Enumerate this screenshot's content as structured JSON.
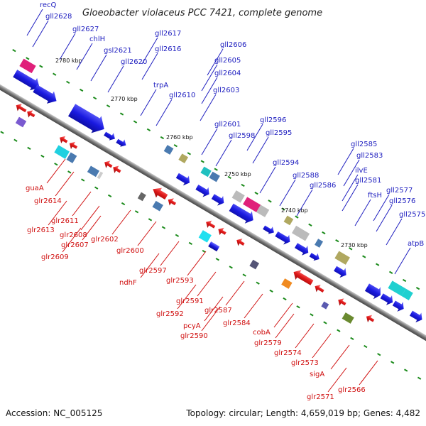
{
  "title": "Gloeobacter violaceus PCC 7421, complete genome",
  "footer": {
    "accession": "Accession: NC_005125",
    "topology": "Topology: circular; Length: 4,659,019 bp; Genes: 4,482"
  },
  "colors": {
    "forward": "#1a1ae0",
    "reverse": "#e01818",
    "backbone": "#888888",
    "tick": "#1a8a1a"
  },
  "kbp_ticks": [
    {
      "label": "2780 kbp"
    },
    {
      "label": "2770 kbp"
    },
    {
      "label": "2760 kbp"
    },
    {
      "label": "2750 kbp"
    },
    {
      "label": "2740 kbp"
    },
    {
      "label": "2730 kbp"
    }
  ],
  "forward_labels": [
    {
      "text": "recQ"
    },
    {
      "text": "gll2628"
    },
    {
      "text": "gll2627"
    },
    {
      "text": "chlH"
    },
    {
      "text": "gsl2621"
    },
    {
      "text": "gll2617"
    },
    {
      "text": "gll2616"
    },
    {
      "text": "gll2620"
    },
    {
      "text": "gll2610"
    },
    {
      "text": "trpA"
    },
    {
      "text": "gll2606"
    },
    {
      "text": "gll2605"
    },
    {
      "text": "gll2604"
    },
    {
      "text": "gll2603"
    },
    {
      "text": "gll2601"
    },
    {
      "text": "gll2596"
    },
    {
      "text": "gll2598"
    },
    {
      "text": "gll2595"
    },
    {
      "text": "gll2594"
    },
    {
      "text": "gll2585"
    },
    {
      "text": "gll2583"
    },
    {
      "text": "gll2588"
    },
    {
      "text": "ilvE"
    },
    {
      "text": "gll2586"
    },
    {
      "text": "gll2581"
    },
    {
      "text": "ftsH"
    },
    {
      "text": "gll2577"
    },
    {
      "text": "gll2576"
    },
    {
      "text": "gll2575"
    },
    {
      "text": "atpB"
    }
  ],
  "reverse_labels": [
    {
      "text": "guaA"
    },
    {
      "text": "glr2614"
    },
    {
      "text": "glr2611"
    },
    {
      "text": "glr2613"
    },
    {
      "text": "glr2608"
    },
    {
      "text": "glr2607"
    },
    {
      "text": "glr2602"
    },
    {
      "text": "glr2609"
    },
    {
      "text": "glr2600"
    },
    {
      "text": "ndhF"
    },
    {
      "text": "glr2597"
    },
    {
      "text": "glr2593"
    },
    {
      "text": "glr2591"
    },
    {
      "text": "glr2592"
    },
    {
      "text": "glr2587"
    },
    {
      "text": "pcyA"
    },
    {
      "text": "glr2590"
    },
    {
      "text": "glr2584"
    },
    {
      "text": "cobA"
    },
    {
      "text": "glr2579"
    },
    {
      "text": "glr2574"
    },
    {
      "text": "glr2573"
    },
    {
      "text": "sigA"
    },
    {
      "text": "glr2571"
    },
    {
      "text": "glr2566"
    }
  ]
}
